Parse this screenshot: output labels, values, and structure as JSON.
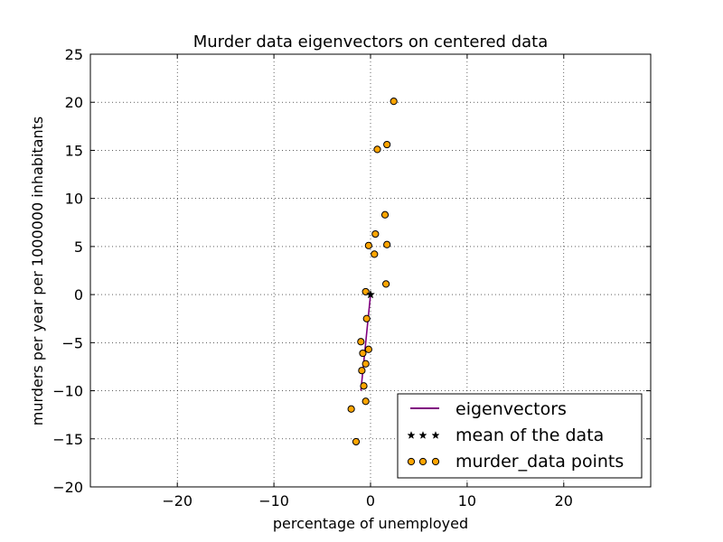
{
  "chart_data": {
    "type": "scatter",
    "title": "Murder data eigenvectors on centered data",
    "xlabel": "percentage of unemployed",
    "ylabel": "murders per year per 1000000 inhabitants",
    "xlim": [
      -29,
      29
    ],
    "ylim": [
      -20,
      25
    ],
    "xticks": [
      -20,
      -10,
      0,
      10,
      20
    ],
    "yticks": [
      -20,
      -15,
      -10,
      -5,
      0,
      5,
      10,
      15,
      20,
      25
    ],
    "grid": true,
    "legend_position": "lower-right",
    "series": [
      {
        "name": "eigenvectors",
        "kind": "line",
        "color": "#800080",
        "points": [
          [
            0,
            0
          ],
          [
            -1.0,
            -10.0
          ]
        ]
      },
      {
        "name": "mean of the data",
        "kind": "star",
        "color": "#000000",
        "points": [
          [
            0,
            0
          ]
        ]
      },
      {
        "name": "murder_data points",
        "kind": "circle",
        "color": "#ffa500",
        "points": [
          [
            2.4,
            20.1
          ],
          [
            1.7,
            15.6
          ],
          [
            0.7,
            15.1
          ],
          [
            1.5,
            8.3
          ],
          [
            0.5,
            6.3
          ],
          [
            -0.2,
            5.1
          ],
          [
            1.7,
            5.2
          ],
          [
            0.4,
            4.2
          ],
          [
            1.6,
            1.1
          ],
          [
            -0.5,
            0.3
          ],
          [
            -0.4,
            -2.5
          ],
          [
            -1.0,
            -4.9
          ],
          [
            -0.2,
            -5.7
          ],
          [
            -0.8,
            -6.1
          ],
          [
            -0.5,
            -7.2
          ],
          [
            -0.9,
            -7.9
          ],
          [
            -0.7,
            -9.5
          ],
          [
            -0.5,
            -11.1
          ],
          [
            -2.0,
            -11.9
          ],
          [
            -1.5,
            -15.3
          ]
        ]
      }
    ]
  }
}
